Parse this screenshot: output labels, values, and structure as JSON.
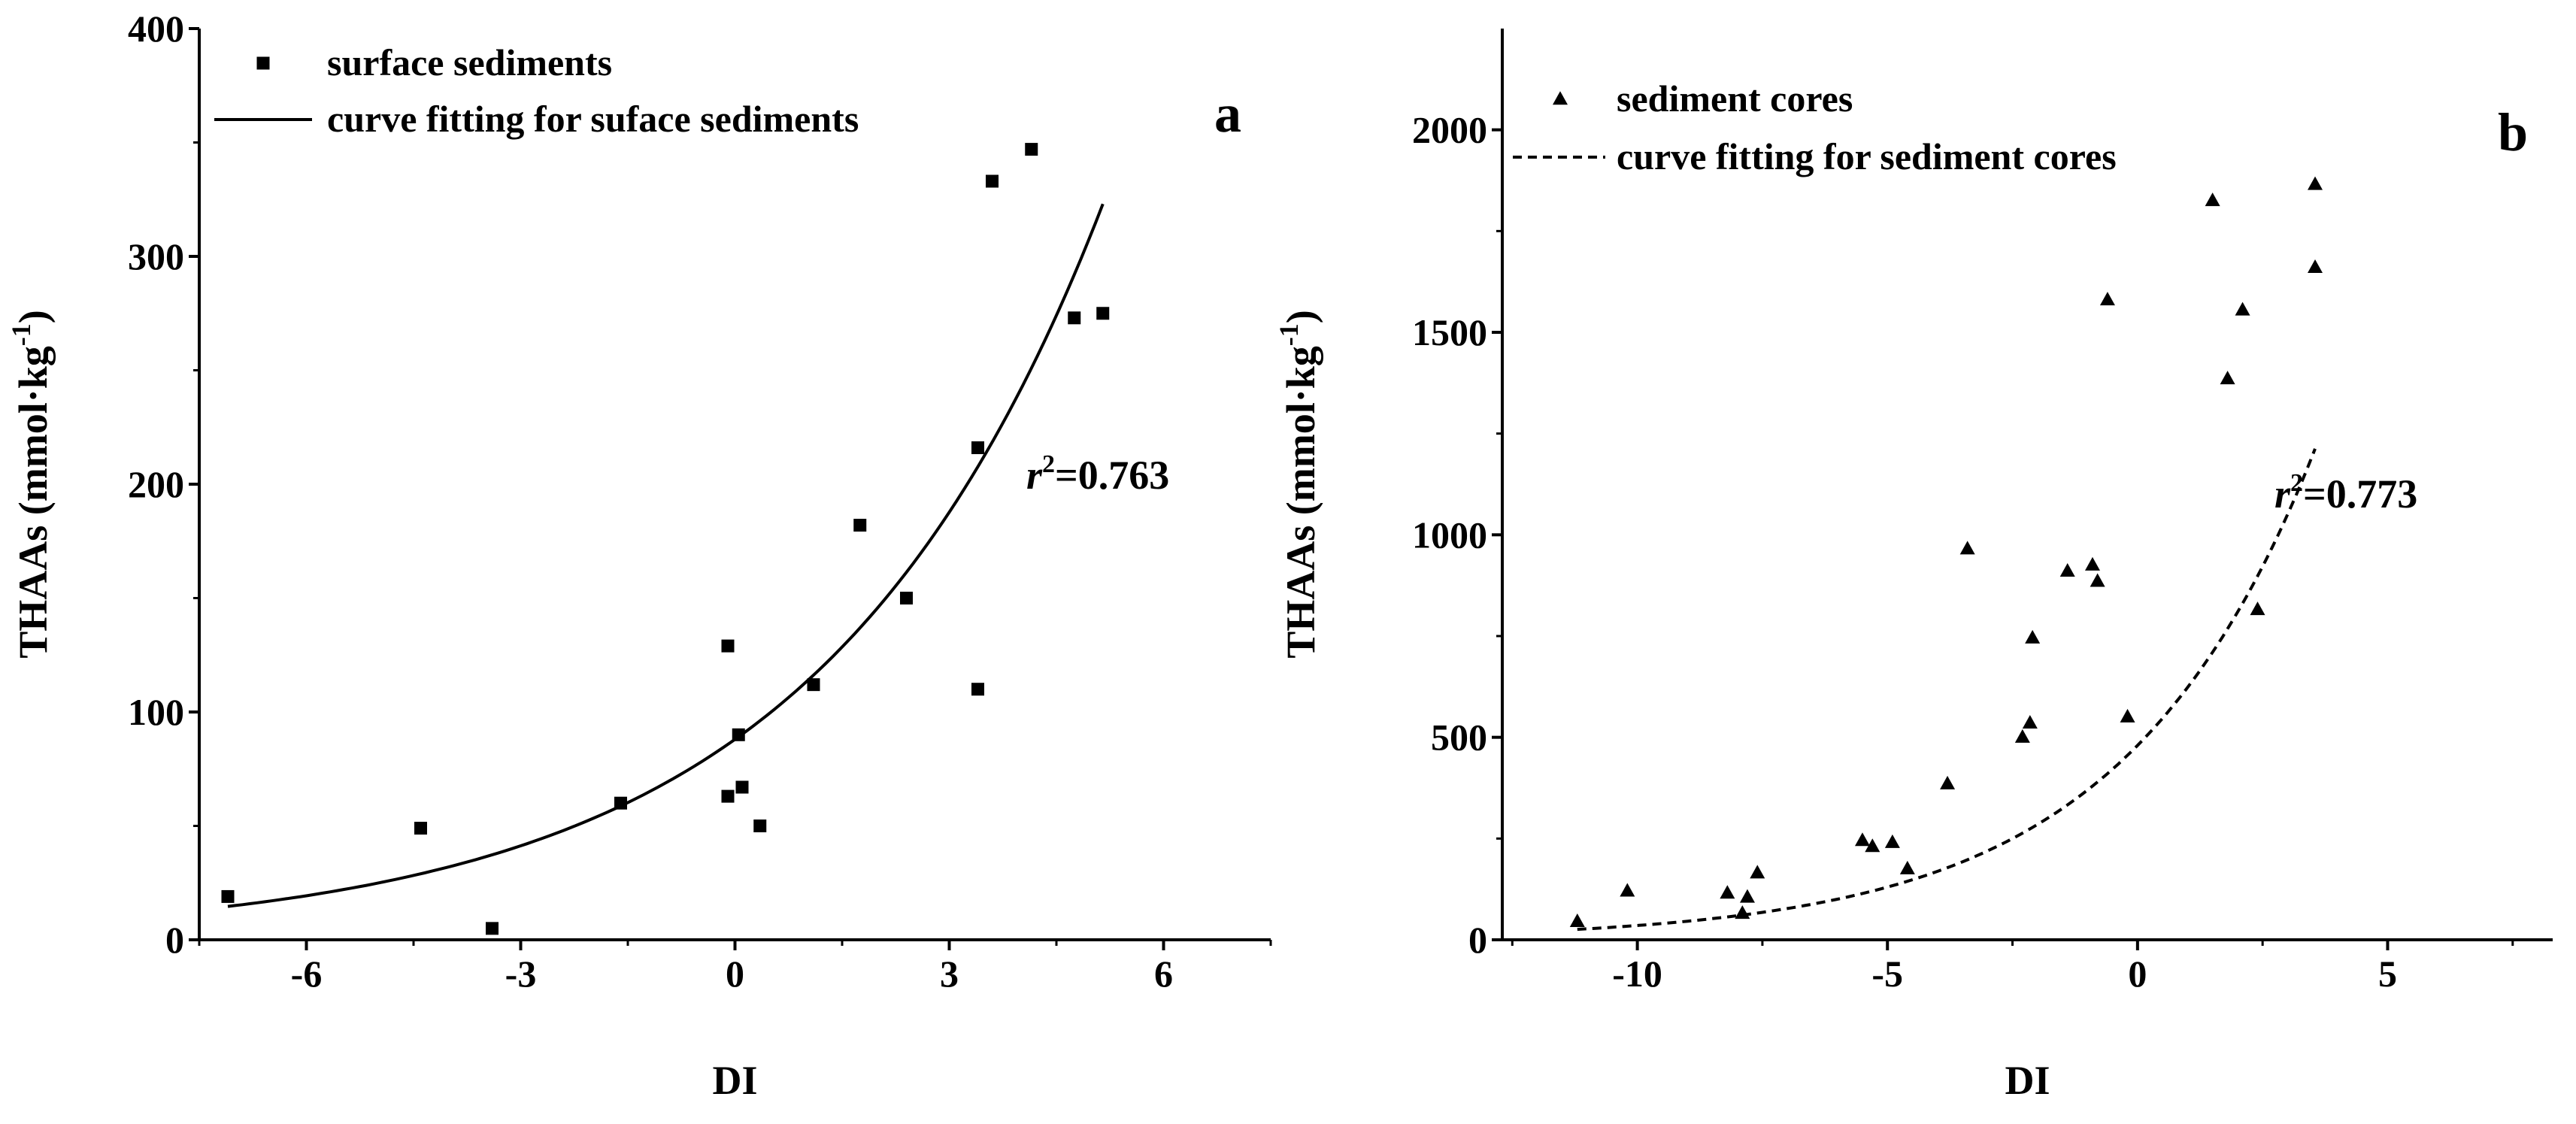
{
  "chart_data": [
    {
      "type": "scatter",
      "panel": "a",
      "xlabel": "DI",
      "ylabel": "THAAs (mmol·kg",
      "ylabel_sup": "-1",
      "ylabel_close": ")",
      "xlim": [
        -7.5,
        7.5
      ],
      "ylim": [
        0,
        400
      ],
      "xticks": [
        -6,
        -3,
        0,
        3,
        6
      ],
      "xtick_labels": [
        "-6",
        "-3",
        "0",
        "3",
        "6"
      ],
      "yticks": [
        0,
        100,
        200,
        300,
        400
      ],
      "ytick_labels": [
        "0",
        "100",
        "200",
        "300",
        "400"
      ],
      "r2_symbol": "r",
      "r2_sup": "2",
      "r2_value": "=0.763",
      "legend_position": "top-left",
      "series": [
        {
          "name": "surface sediments",
          "marker": "square",
          "points": [
            [
              -7.1,
              19
            ],
            [
              -4.4,
              49
            ],
            [
              -3.4,
              5
            ],
            [
              -1.6,
              60
            ],
            [
              -0.1,
              129
            ],
            [
              -0.1,
              63
            ],
            [
              0.05,
              90
            ],
            [
              0.1,
              67
            ],
            [
              0.35,
              50
            ],
            [
              1.1,
              112
            ],
            [
              1.75,
              182
            ],
            [
              2.4,
              150
            ],
            [
              3.4,
              216
            ],
            [
              3.4,
              110
            ],
            [
              3.6,
              333
            ],
            [
              4.15,
              347
            ],
            [
              4.75,
              273
            ],
            [
              5.15,
              275
            ]
          ]
        },
        {
          "name": "curve fitting for suface sediments",
          "style": "solid",
          "fit": {
            "a": 88,
            "b": 0.2525,
            "x_from": -7.1,
            "x_to": 5.15
          }
        }
      ]
    },
    {
      "type": "scatter",
      "panel": "b",
      "xlabel": "DI",
      "ylabel": "THAAs (mmol·kg",
      "ylabel_sup": "-1",
      "ylabel_close": ")",
      "xlim": [
        -12.7,
        8.3
      ],
      "ylim": [
        0,
        2250
      ],
      "xticks": [
        -10,
        -5,
        0,
        5
      ],
      "xtick_labels": [
        "-10",
        "-5",
        "0",
        "5"
      ],
      "yticks": [
        0,
        500,
        1000,
        1500,
        2000
      ],
      "ytick_labels": [
        "0",
        "500",
        "1000",
        "1500",
        "2000"
      ],
      "r2_symbol": "r",
      "r2_sup": "2",
      "r2_value": "=0.773",
      "legend_position": "top-left",
      "series": [
        {
          "name": "sediment cores",
          "marker": "triangle",
          "points": [
            [
              -11.2,
              45
            ],
            [
              -10.2,
              120
            ],
            [
              -8.2,
              115
            ],
            [
              -7.9,
              65
            ],
            [
              -7.8,
              105
            ],
            [
              -7.6,
              165
            ],
            [
              -5.5,
              245
            ],
            [
              -5.3,
              230
            ],
            [
              -4.9,
              240
            ],
            [
              -4.6,
              175
            ],
            [
              -3.8,
              385
            ],
            [
              -3.4,
              965
            ],
            [
              -2.3,
              500
            ],
            [
              -2.15,
              535
            ],
            [
              -2.1,
              745
            ],
            [
              -1.4,
              910
            ],
            [
              -0.9,
              925
            ],
            [
              -0.8,
              885
            ],
            [
              -0.6,
              1580
            ],
            [
              -0.2,
              550
            ],
            [
              1.5,
              1825
            ],
            [
              1.8,
              1385
            ],
            [
              2.1,
              1555
            ],
            [
              2.4,
              815
            ],
            [
              3.55,
              1865
            ],
            [
              3.55,
              1660
            ]
          ]
        },
        {
          "name": "curve fitting for sediment cores",
          "style": "dashed",
          "fit": {
            "a": 480,
            "b": 0.261,
            "x_from": -11.2,
            "x_to": 3.55
          }
        }
      ]
    }
  ]
}
